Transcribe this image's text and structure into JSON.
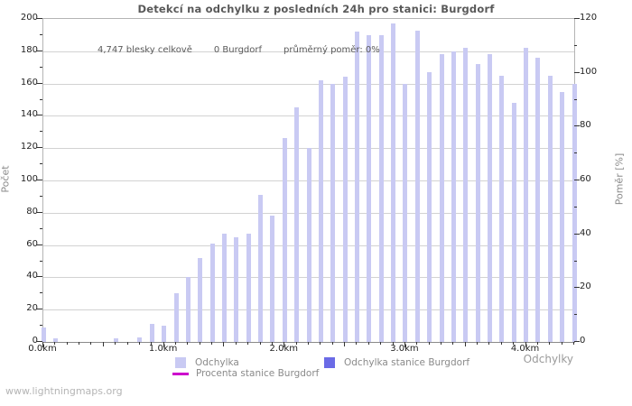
{
  "title": "Detekcí na odchylku z posledních 24h pro stanici: Burgdorf",
  "annotation": {
    "total_label": "4,747 blesky celkově",
    "station_label": "0 Burgdorf",
    "ratio_label": "průměrný poměr: 0%"
  },
  "watermark": "www.lightningmaps.org",
  "legend": {
    "deviation_label": "Odchylka",
    "station_deviation_label": "Odchylka stanice Burgdorf",
    "percent_label": "Procenta stanice Burgdorf"
  },
  "colors": {
    "bar_light": "#c9caf3",
    "bar_station": "#6b6be6",
    "percent_line": "#cc00cc",
    "grid": "#d2d2d2",
    "tick": "#333333"
  },
  "chart_data": {
    "type": "bar",
    "title": "Detekcí na odchylku z posledních 24h pro stanici: Burgdorf",
    "xlabel": "Odchylky",
    "ylabel_left": "Počet",
    "ylabel_right": "Poměr [%]",
    "ylim_left": [
      0,
      200
    ],
    "ylim_right": [
      0,
      120
    ],
    "y_ticks_left": [
      0,
      20,
      40,
      60,
      80,
      100,
      120,
      140,
      160,
      180,
      200
    ],
    "y_ticks_right": [
      0,
      20,
      40,
      60,
      80,
      100,
      120
    ],
    "x_tick_labels": [
      "0.0km",
      "1.0km",
      "2.0km",
      "3.0km",
      "4.0km"
    ],
    "x_major_tick_km": [
      0.0,
      1.0,
      2.0,
      3.0,
      4.0
    ],
    "x_bin_start_km": 0.0,
    "x_bin_step_km": 0.1,
    "x_km": [
      0.0,
      0.1,
      0.2,
      0.3,
      0.4,
      0.5,
      0.6,
      0.7,
      0.8,
      0.9,
      1.0,
      1.1,
      1.2,
      1.3,
      1.4,
      1.5,
      1.6,
      1.7,
      1.8,
      1.9,
      2.0,
      2.1,
      2.2,
      2.3,
      2.4,
      2.5,
      2.6,
      2.7,
      2.8,
      2.9,
      3.0,
      3.1,
      3.2,
      3.3,
      3.4,
      3.5,
      3.6,
      3.7,
      3.8,
      3.9,
      4.0,
      4.1,
      4.2,
      4.3,
      4.4
    ],
    "series": [
      {
        "name": "Odchylka",
        "axis": "left",
        "color": "#c9caf3",
        "values": [
          9,
          2,
          0,
          0,
          0,
          0,
          2,
          0,
          3,
          11,
          10,
          30,
          40,
          52,
          61,
          67,
          65,
          67,
          91,
          78,
          126,
          145,
          120,
          162,
          160,
          164,
          192,
          190,
          190,
          197,
          160,
          193,
          167,
          178,
          180,
          182,
          172,
          178,
          165,
          148,
          182,
          176,
          165,
          155,
          160
        ]
      }
    ],
    "station_series": {
      "name": "Odchylka stanice Burgdorf",
      "axis": "left",
      "color": "#6b6be6",
      "total_detections": 0,
      "values_constant": 0
    },
    "percent_line_series": {
      "name": "Procenta stanice Burgdorf",
      "axis": "right",
      "color": "#cc00cc",
      "average_percent": 0,
      "values_constant": 0
    },
    "grid": "horizontal",
    "legend_position": "bottom"
  }
}
